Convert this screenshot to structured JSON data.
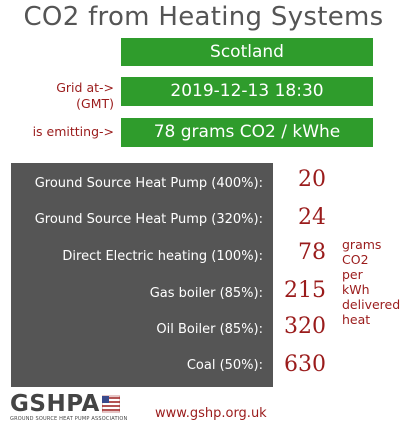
{
  "title": "CO2 from Heating Systems",
  "region": "Scotland",
  "grid_label_line1": "Grid at->",
  "grid_label_line2": "(GMT)",
  "datetime": "2019-12-13 18:30",
  "emitting_label": "is emitting->",
  "emitting_value": "78 grams CO2 / kWhe",
  "systems": [
    {
      "label": "Ground Source Heat Pump (400%):",
      "value": "20"
    },
    {
      "label": "Ground Source Heat Pump (320%):",
      "value": "24"
    },
    {
      "label": "Direct Electric heating (100%):",
      "value": "78"
    },
    {
      "label": "Gas boiler (85%):",
      "value": "215"
    },
    {
      "label": "Oil Boiler (85%):",
      "value": "320"
    },
    {
      "label": "Coal (50%):",
      "value": "630"
    }
  ],
  "unit_lines": [
    "grams",
    "CO2",
    "per",
    "kWh",
    "delivered",
    "heat"
  ],
  "logo": {
    "name": "GSHPA",
    "tagline": "GROUND SOURCE HEAT PUMP ASSOCIATION"
  },
  "website": "www.gshp.org.uk",
  "colors": {
    "green": "#2f9c2c",
    "red": "#9a1b1b",
    "panel": "#555555"
  }
}
